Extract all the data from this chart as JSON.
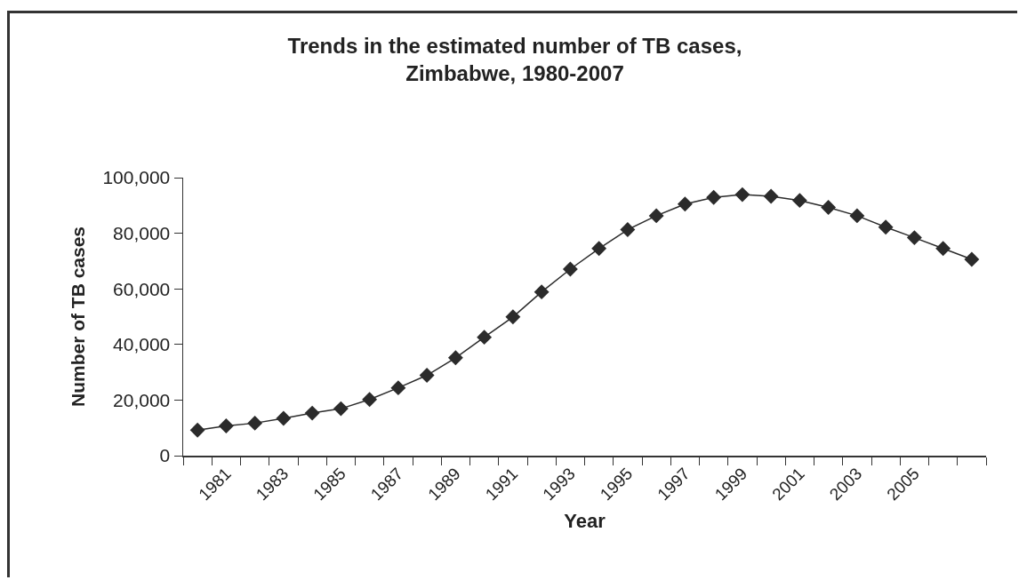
{
  "chart_data": {
    "type": "line",
    "title": "Trends in the estimated number of TB cases,\nZimbabwe, 1980-2007",
    "xlabel": "Year",
    "ylabel": "Number of TB cases",
    "categories": [
      null,
      "1981",
      null,
      "1983",
      null,
      "1985",
      null,
      "1987",
      null,
      "1989",
      null,
      "1991",
      null,
      "1993",
      null,
      "1995",
      null,
      "1997",
      null,
      "1999",
      null,
      "2001",
      null,
      "2003",
      null,
      "2005",
      null,
      null
    ],
    "values": [
      9200,
      10700,
      11700,
      13400,
      15300,
      16900,
      20200,
      24400,
      28900,
      35200,
      42600,
      49900,
      58900,
      67100,
      74500,
      81300,
      86300,
      90500,
      92900,
      93900,
      93300,
      91800,
      89300,
      86300,
      82200,
      78400,
      74500,
      70600
    ],
    "color": "#2b2b2b",
    "marker": "diamond",
    "line_style": "solid",
    "grid": false,
    "legend": false,
    "ylim": [
      0,
      100000
    ],
    "yticks": [
      {
        "value": 0,
        "label": "0"
      },
      {
        "value": 20000,
        "label": "20,000"
      },
      {
        "value": 40000,
        "label": "40,000"
      },
      {
        "value": 60000,
        "label": "60,000"
      },
      {
        "value": 80000,
        "label": "80,000"
      },
      {
        "value": 100000,
        "label": "100,000"
      }
    ]
  }
}
